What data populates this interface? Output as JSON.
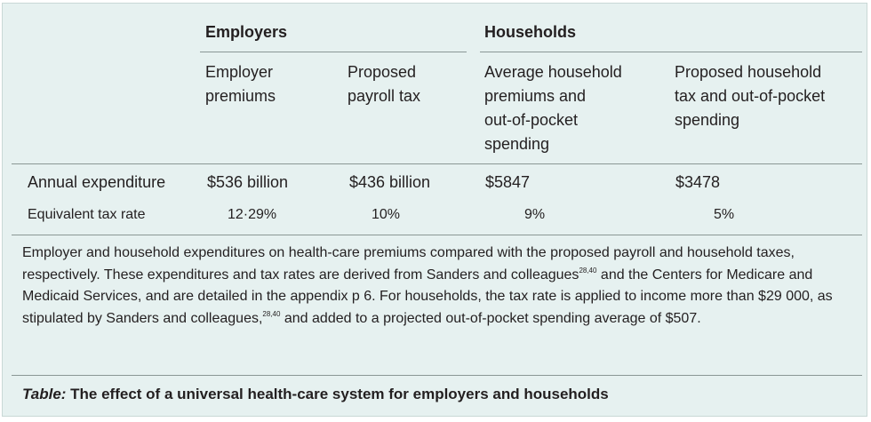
{
  "table": {
    "groups": {
      "employers": "Employers",
      "households": "Households"
    },
    "subheaders": {
      "employer_premiums": [
        "Employer",
        "premiums"
      ],
      "payroll_tax": [
        "Proposed",
        "payroll tax"
      ],
      "household_premiums": [
        "Average household",
        "premiums and",
        "out-of-pocket",
        "spending"
      ],
      "household_tax": [
        "Proposed household",
        "tax and out-of-pocket",
        "spending"
      ]
    },
    "rows": [
      {
        "label": "Annual expenditure",
        "values": [
          "$536 billion",
          "$436 billion",
          "$5847",
          "$3478"
        ]
      },
      {
        "label": "Equivalent tax rate",
        "values": [
          "12·29%",
          "10%",
          "9%",
          "5%"
        ]
      }
    ]
  },
  "caption": {
    "part1": "Employer and household expenditures on health-care premiums compared with the proposed payroll and household taxes, respectively. These expenditures and tax rates are derived from Sanders and colleagues",
    "ref1": "28,40",
    "part2": " and the Centers for Medicare and Medicaid Services, and are detailed in the appendix p 6. For households, the tax rate is applied to income more than $29 000, as stipulated by Sanders and colleagues,",
    "ref2": "28,40",
    "part3": " and added to a projected out-of-pocket spending average of $507."
  },
  "title": {
    "label": "Table:",
    "text": " The effect of a universal health-care system for employers and households"
  },
  "colors": {
    "panel": "#e6f1f0",
    "rule": "#8a9795",
    "text": "#231f20"
  }
}
